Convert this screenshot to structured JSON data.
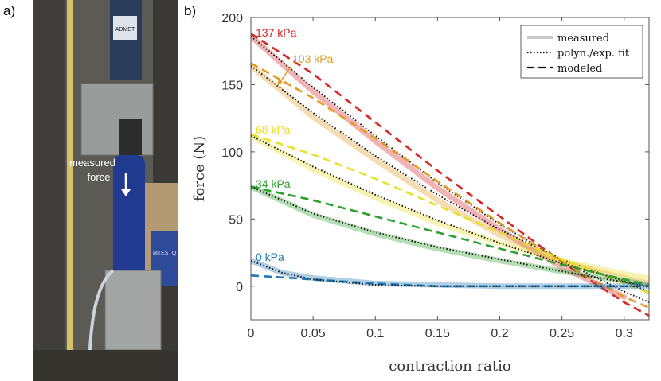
{
  "panel_labels": {
    "a": "a)",
    "b": "b)"
  },
  "photo": {
    "annotation_line1": "measured",
    "annotation_line2": "force",
    "machine_label": "MTESTQ",
    "brand_label": "ADMET"
  },
  "chart_data": {
    "type": "line",
    "xlabel": "contraction ratio",
    "ylabel": "force (N)",
    "xlim": [
      0,
      0.32
    ],
    "ylim": [
      -25,
      200
    ],
    "xticks": [
      0,
      0.05,
      0.1,
      0.15,
      0.2,
      0.25,
      0.3
    ],
    "xtick_labels": [
      "0",
      "0.05",
      "0.1",
      "0.15",
      "0.2",
      "0.25",
      "0.3"
    ],
    "yticks": [
      0,
      50,
      100,
      150,
      200
    ],
    "ytick_labels": [
      "0",
      "50",
      "100",
      "150",
      "200"
    ],
    "legend": {
      "position": "top-right",
      "entries": [
        {
          "label": "measured",
          "style": "solid-light"
        },
        {
          "label": "polyn./exp. fit",
          "style": "dotted"
        },
        {
          "label": "modeled",
          "style": "dashed"
        }
      ]
    },
    "series": [
      {
        "name": "137 kPa",
        "color": "#d62728",
        "measured": {
          "x": [
            0,
            0.05,
            0.1,
            0.15,
            0.2,
            0.25,
            0.3
          ],
          "y": [
            186,
            145,
            108,
            73,
            42,
            14,
            -8
          ]
        },
        "fit": {
          "x": [
            0,
            0.05,
            0.1,
            0.15,
            0.2,
            0.25,
            0.3,
            0.32
          ],
          "y": [
            186,
            148,
            112,
            77,
            46,
            19,
            -4,
            -12
          ]
        },
        "modeled": {
          "x": [
            0,
            0.05,
            0.1,
            0.15,
            0.2,
            0.25,
            0.3,
            0.32
          ],
          "y": [
            188,
            158,
            122,
            86,
            52,
            18,
            -12,
            -22
          ]
        }
      },
      {
        "name": "103 kPa",
        "color": "#e69a22",
        "measured": {
          "x": [
            0,
            0.05,
            0.1,
            0.15,
            0.2,
            0.25,
            0.3,
            0.32
          ],
          "y": [
            164,
            126,
            94,
            64,
            38,
            18,
            6,
            2
          ]
        },
        "fit": {
          "x": [
            0,
            0.05,
            0.1,
            0.15,
            0.2,
            0.25,
            0.3,
            0.32
          ],
          "y": [
            164,
            129,
            97,
            68,
            42,
            20,
            3,
            -4
          ]
        },
        "modeled": {
          "x": [
            0,
            0.05,
            0.1,
            0.15,
            0.2,
            0.25,
            0.3,
            0.32
          ],
          "y": [
            166,
            140,
            110,
            78,
            47,
            18,
            -8,
            -16
          ]
        }
      },
      {
        "name": "68 kPa",
        "color": "#e8e025",
        "measured": {
          "x": [
            0,
            0.05,
            0.1,
            0.15,
            0.2,
            0.25,
            0.3,
            0.32
          ],
          "y": [
            112,
            87,
            66,
            47,
            32,
            19,
            9,
            6
          ]
        },
        "fit": {
          "x": [
            0,
            0.05,
            0.1,
            0.15,
            0.2,
            0.25,
            0.3,
            0.32
          ],
          "y": [
            112,
            89,
            68,
            49,
            32,
            17,
            4,
            -1
          ]
        },
        "modeled": {
          "x": [
            0,
            0.05,
            0.1,
            0.15,
            0.2,
            0.25,
            0.3,
            0.32
          ],
          "y": [
            113,
            98,
            80,
            60,
            40,
            20,
            2,
            -5
          ]
        }
      },
      {
        "name": "34 kPa",
        "color": "#2ca02c",
        "measured": {
          "x": [
            0,
            0.05,
            0.1,
            0.15,
            0.2,
            0.25,
            0.3,
            0.32
          ],
          "y": [
            74,
            53,
            39,
            28,
            19,
            11,
            4,
            1
          ]
        },
        "fit": {
          "x": [
            0,
            0.05,
            0.1,
            0.15,
            0.2,
            0.25,
            0.3,
            0.32
          ],
          "y": [
            74,
            54,
            40,
            29,
            20,
            11,
            3,
            0
          ]
        },
        "modeled": {
          "x": [
            0,
            0.05,
            0.1,
            0.15,
            0.2,
            0.25,
            0.3,
            0.32
          ],
          "y": [
            74,
            64,
            52,
            40,
            28,
            16,
            5,
            1
          ]
        }
      },
      {
        "name": "0 kPa",
        "color": "#1f77b4",
        "measured": {
          "x": [
            0,
            0.025,
            0.05,
            0.1,
            0.15,
            0.2,
            0.25,
            0.3,
            0.32
          ],
          "y": [
            19,
            10,
            6,
            2,
            1,
            0,
            0,
            0,
            0
          ]
        },
        "fit": {
          "x": [
            0,
            0.025,
            0.05,
            0.1,
            0.15,
            0.2,
            0.25,
            0.3,
            0.32
          ],
          "y": [
            19,
            10,
            5,
            1,
            0,
            0,
            0,
            0,
            0
          ]
        },
        "modeled": {
          "x": [
            0,
            0.05,
            0.1,
            0.15,
            0.2,
            0.25,
            0.3,
            0.32
          ],
          "y": [
            8,
            5,
            2,
            0,
            0,
            0,
            0,
            0
          ]
        }
      }
    ]
  }
}
